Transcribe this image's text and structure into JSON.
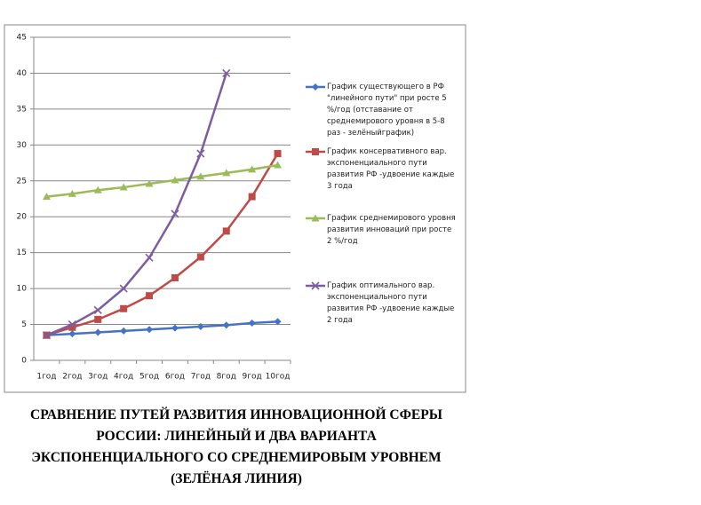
{
  "chart_data": {
    "type": "line",
    "title": "СРАВНЕНИЕ  ПУТЕЙ РАЗВИТИЯ ИННОВАЦИОННОЙ СФЕРЫ РОССИИ: ЛИНЕЙНЫЙ И ДВА  ВАРИАНТА ЭКСПОНЕНЦИАЛЬНОГО СО СРЕДНЕМИРОВЫМ УРОВНЕМ (ЗЕЛЁНАЯ ЛИНИЯ)",
    "categories": [
      "1год",
      "2год",
      "3год",
      "4год",
      "5год",
      "6год",
      "7год",
      "8год",
      "9год",
      "10год"
    ],
    "series": [
      {
        "name": "График  существующего в РФ \"линейного пути\" при росте 5 %/год (отставание от среднемирового уровня в 5-8 раз - зелёныйграфик)",
        "color": "#4472c4",
        "marker": "diamond",
        "values": [
          3.5,
          3.7,
          3.9,
          4.1,
          4.3,
          4.5,
          4.7,
          4.9,
          5.2,
          5.4
        ]
      },
      {
        "name": "График консервативного вар. экспоненциального пути развития РФ -удвоение каждые 3 года",
        "color": "#be4b48",
        "marker": "square",
        "values": [
          3.5,
          4.6,
          5.7,
          7.2,
          9.0,
          11.5,
          14.4,
          18.0,
          22.8,
          28.8
        ]
      },
      {
        "name": "График среднемирового уровня развития инноваций при  росте  2 %/год",
        "color": "#9bbb59",
        "marker": "triangle",
        "values": [
          22.8,
          23.2,
          23.7,
          24.1,
          24.6,
          25.1,
          25.6,
          26.1,
          26.6,
          27.2
        ]
      },
      {
        "name": "График  оптимального вар. экспоненциального пути развития РФ -удвоение каждые 2 года",
        "color": "#7e5ca0",
        "marker": "x",
        "values": [
          3.5,
          5.0,
          7.0,
          10.0,
          14.3,
          20.4,
          28.8,
          40.0,
          null,
          null
        ]
      }
    ],
    "ylim": [
      0,
      45
    ],
    "yticks": [
      0,
      5,
      10,
      15,
      20,
      25,
      30,
      35,
      40,
      45
    ],
    "grid": true,
    "legend": "right"
  }
}
